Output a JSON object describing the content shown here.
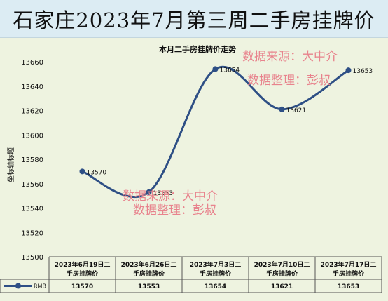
{
  "banner": {
    "title": "石家庄2023年7月第三周二手房挂牌价"
  },
  "chart_data": {
    "type": "line",
    "title": "本月二手房挂牌价走势",
    "ylabel": "坐标轴标题",
    "xlabel": "",
    "ylim": [
      13500,
      13660
    ],
    "yticks": [
      13500,
      13520,
      13540,
      13560,
      13580,
      13600,
      13620,
      13640,
      13660
    ],
    "categories": [
      "2023年6月19日二手房挂牌价",
      "2023年6月26日二手房挂牌价",
      "2023年7月3日二手房挂牌价",
      "2023年7月10日二手房挂牌价",
      "2023年7月17日二手房挂牌价"
    ],
    "series": [
      {
        "name": "RMB",
        "values": [
          13570,
          13553,
          13654,
          13621,
          13653
        ],
        "color": "#2e4f85"
      }
    ],
    "grid": false,
    "legend": "data-table"
  },
  "watermarks": [
    {
      "line1": "数据来源：大中介",
      "line2": "数据整理：彭叔"
    },
    {
      "line1": "数据来源：大中介",
      "line2": "数据整理：彭叔"
    }
  ],
  "colors": {
    "series": "#2e4f85",
    "watermark": "#e8838d",
    "plot_bg": "#eef3e0",
    "banner_bg": "#dcecf3"
  }
}
